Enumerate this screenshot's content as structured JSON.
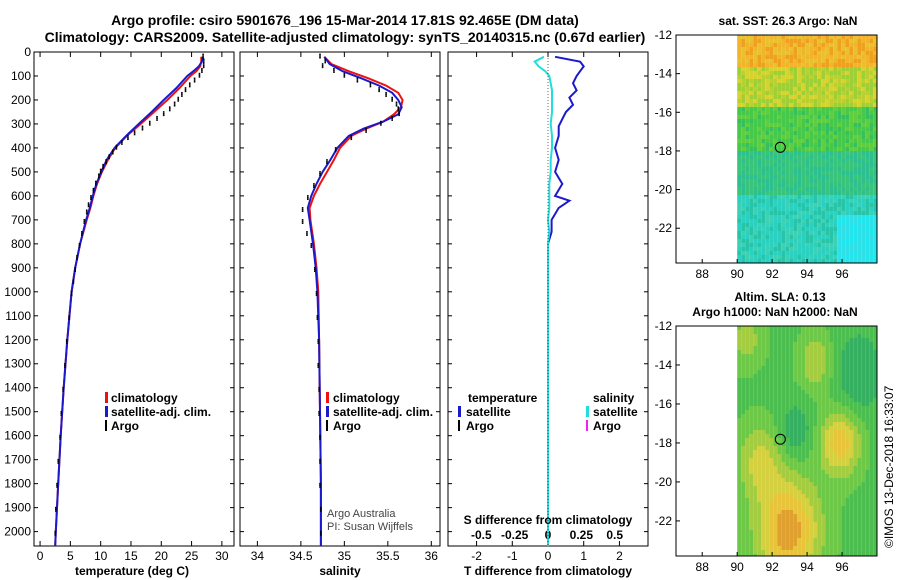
{
  "header": {
    "title_line1": "Argo profile: csiro 5901676_196 15-Mar-2014 17.81S 92.465E (DM data)",
    "title_line2": "Climatology: CARS2009. Satellite-adjusted climatology: synTS_20140315.nc (0.67d earlier)"
  },
  "colors": {
    "climatology": "#ee1111",
    "satellite": "#1a1acc",
    "argo": "#000000",
    "salinity_sat": "#22dddd",
    "salinity_argo": "#ee22ee"
  },
  "chart_data": [
    {
      "id": "temperature",
      "type": "line",
      "xlabel": "temperature (deg C)",
      "ylabel": "",
      "xlim": [
        -1,
        32
      ],
      "ylim": [
        2060,
        0
      ],
      "xticks": [
        0,
        5,
        10,
        15,
        20,
        25,
        30
      ],
      "yticks": [
        0,
        100,
        200,
        300,
        400,
        500,
        600,
        700,
        800,
        900,
        1000,
        1100,
        1200,
        1300,
        1400,
        1500,
        1600,
        1700,
        1800,
        1900,
        2000
      ],
      "legend": [
        "climatology",
        "satellite-adj. clim.",
        "Argo"
      ],
      "series": [
        {
          "name": "climatology",
          "style": "line",
          "depth": [
            20,
            40,
            60,
            80,
            100,
            150,
            200,
            250,
            300,
            350,
            400,
            450,
            500,
            550,
            600,
            650,
            700,
            800,
            900,
            1000,
            1200,
            1400,
            1600,
            1800,
            2000,
            2060
          ],
          "values": [
            26.6,
            26.6,
            26.4,
            25.8,
            24.8,
            23.0,
            21.0,
            18.8,
            16.6,
            14.3,
            12.4,
            11.2,
            10.2,
            9.4,
            8.8,
            8.3,
            7.7,
            6.6,
            5.8,
            5.2,
            4.5,
            3.9,
            3.4,
            3.0,
            2.6,
            2.5
          ]
        },
        {
          "name": "satellite-adj. clim.",
          "style": "line",
          "depth": [
            20,
            40,
            60,
            80,
            100,
            150,
            200,
            250,
            300,
            350,
            400,
            450,
            500,
            550,
            600,
            650,
            700,
            800,
            900,
            1000,
            1200,
            1400,
            1600,
            1800,
            2000,
            2060
          ],
          "values": [
            26.8,
            26.7,
            26.2,
            25.3,
            24.3,
            22.5,
            20.4,
            18.4,
            16.3,
            14.2,
            12.3,
            11.0,
            10.1,
            9.3,
            8.7,
            8.2,
            7.6,
            6.6,
            5.8,
            5.2,
            4.5,
            3.9,
            3.4,
            3.0,
            2.6,
            2.5
          ]
        },
        {
          "name": "Argo",
          "style": "dots",
          "depth": [
            10,
            30,
            50,
            70,
            90,
            110,
            130,
            150,
            170,
            190,
            210,
            230,
            250,
            270,
            290,
            310,
            330,
            350,
            370,
            390,
            410,
            430,
            450,
            470,
            490,
            510,
            540,
            570,
            600,
            630,
            660,
            700,
            750,
            800,
            850,
            900,
            950,
            1000,
            1100,
            1200,
            1300,
            1400,
            1500,
            1600,
            1700,
            1800,
            1900,
            2000
          ],
          "values": [
            26.9,
            27.0,
            27.0,
            26.7,
            26.3,
            25.5,
            24.7,
            24.0,
            23.4,
            22.8,
            22.2,
            21.4,
            20.4,
            19.3,
            18.1,
            16.9,
            15.6,
            14.5,
            13.5,
            12.6,
            12.0,
            11.4,
            10.9,
            10.4,
            10.0,
            9.7,
            9.2,
            8.8,
            8.4,
            8.0,
            7.7,
            7.3,
            6.9,
            6.5,
            6.1,
            5.8,
            5.5,
            5.2,
            4.8,
            4.4,
            4.1,
            3.8,
            3.5,
            3.3,
            3.0,
            2.8,
            2.6,
            2.5
          ]
        }
      ]
    },
    {
      "id": "salinity",
      "type": "line",
      "xlabel": "salinity",
      "xlim": [
        33.8,
        36.1
      ],
      "ylim": [
        2060,
        0
      ],
      "xticks": [
        34,
        34.5,
        35,
        35.5,
        36
      ],
      "xticklabels": [
        "34",
        "34.5",
        "35",
        "35.5",
        "36"
      ],
      "legend": [
        "climatology",
        "satellite-adj. clim.",
        "Argo"
      ],
      "credit_line1": "Argo Australia",
      "credit_line2": "PI: Susan Wijffels",
      "series": [
        {
          "name": "climatology",
          "style": "line",
          "depth": [
            20,
            50,
            80,
            110,
            140,
            170,
            200,
            230,
            260,
            290,
            320,
            350,
            400,
            450,
            500,
            550,
            600,
            650,
            700,
            800,
            900,
            1000,
            1200,
            1500,
            1800,
            2060
          ],
          "values": [
            34.77,
            34.85,
            35.05,
            35.28,
            35.48,
            35.62,
            35.67,
            35.65,
            35.57,
            35.45,
            35.25,
            35.08,
            34.95,
            34.88,
            34.8,
            34.72,
            34.65,
            34.6,
            34.61,
            34.65,
            34.68,
            34.7,
            34.71,
            34.72,
            34.73,
            34.73
          ]
        },
        {
          "name": "satellite-adj. clim.",
          "style": "line",
          "depth": [
            20,
            50,
            80,
            110,
            140,
            170,
            200,
            230,
            260,
            290,
            320,
            350,
            400,
            450,
            500,
            550,
            600,
            650,
            700,
            800,
            900,
            1000,
            1200,
            1500,
            1800,
            2060
          ],
          "values": [
            34.77,
            34.83,
            34.98,
            35.2,
            35.4,
            35.55,
            35.62,
            35.66,
            35.62,
            35.45,
            35.22,
            35.05,
            34.92,
            34.84,
            34.75,
            34.68,
            34.62,
            34.58,
            34.6,
            34.64,
            34.67,
            34.69,
            34.71,
            34.72,
            34.73,
            34.73
          ]
        },
        {
          "name": "Argo",
          "style": "dots",
          "depth": [
            10,
            30,
            50,
            70,
            90,
            110,
            130,
            150,
            170,
            190,
            210,
            230,
            250,
            270,
            290,
            320,
            350,
            400,
            450,
            500,
            550,
            600,
            650,
            700,
            750,
            800,
            900,
            1000,
            1100,
            1200,
            1300,
            1400,
            1500,
            1600,
            1700,
            1800,
            1900,
            2000
          ],
          "values": [
            34.72,
            34.78,
            34.75,
            34.88,
            35.0,
            35.15,
            35.3,
            35.4,
            35.48,
            35.55,
            35.6,
            35.62,
            35.63,
            35.55,
            35.42,
            35.25,
            35.08,
            34.9,
            34.8,
            34.72,
            34.65,
            34.58,
            34.52,
            34.52,
            34.57,
            34.62,
            34.66,
            34.68,
            34.69,
            34.7,
            34.7,
            34.71,
            34.71,
            34.72,
            34.72,
            34.72,
            34.73,
            34.73
          ]
        }
      ]
    },
    {
      "id": "difference",
      "type": "line",
      "xlabel": "T difference from climatology",
      "xlim": [
        -2.8,
        2.8
      ],
      "ylim": [
        2060,
        0
      ],
      "xticks": [
        -2,
        -1,
        0,
        1,
        2
      ],
      "secondary_label": "S difference from climatology",
      "secondary_ticks": [
        -0.5,
        -0.25,
        0,
        0.25,
        0.5
      ],
      "secondary_ticklabels": [
        "-0.5",
        "-0.25",
        "0",
        "0.25",
        "0.5"
      ],
      "legend_temperature": "temperature",
      "legend_salinity": "salinity",
      "legend_satellite": "satellite",
      "legend_argo": "Argo",
      "series": [
        {
          "name": "T satellite",
          "style": "line",
          "depth": [
            20,
            40,
            60,
            80,
            100,
            130,
            160,
            190,
            220,
            250,
            280,
            310,
            350,
            400,
            450,
            500,
            550,
            600,
            620,
            650,
            700,
            750,
            800,
            900,
            1000,
            1200,
            1500,
            1800,
            2060
          ],
          "values": [
            0.2,
            0.9,
            1.0,
            0.9,
            0.8,
            0.7,
            0.8,
            0.6,
            0.7,
            0.5,
            0.4,
            0.3,
            0.3,
            0.2,
            0.3,
            0.2,
            0.4,
            0.2,
            0.6,
            0.3,
            0.1,
            0.1,
            0.0,
            0.0,
            0.0,
            0.0,
            0.0,
            0.0,
            0.0
          ]
        },
        {
          "name": "S satellite",
          "style": "line",
          "depth": [
            20,
            40,
            60,
            80,
            100,
            130,
            160,
            200,
            250,
            300,
            350,
            400,
            450,
            500,
            550,
            600,
            650,
            700,
            750,
            800,
            850,
            900,
            1000,
            1200,
            1500,
            1800,
            2060
          ],
          "values": [
            -0.03,
            -0.1,
            -0.07,
            -0.02,
            0.01,
            0.02,
            0.03,
            0.03,
            0.03,
            0.02,
            0.03,
            0.03,
            0.02,
            0.02,
            0.01,
            0.01,
            0.01,
            0.0,
            0.01,
            0.0,
            0.0,
            0.0,
            0.0,
            0.0,
            0.0,
            0.0,
            0.0
          ]
        }
      ]
    },
    {
      "id": "sst_map",
      "type": "heatmap",
      "title": "sat. SST: 26.3 Argo: NaN",
      "xlim": [
        86.5,
        98.0
      ],
      "ylim": [
        -23.8,
        -12.0
      ],
      "xticks": [
        88,
        90,
        92,
        94,
        96
      ],
      "yticks": [
        -12,
        -14,
        -16,
        -18,
        -20,
        -22
      ],
      "marker_lon": 92.465,
      "marker_lat": -17.81
    },
    {
      "id": "sla_map",
      "type": "heatmap",
      "title_line1": "Altim. SLA: 0.13",
      "title_line2": "Argo h1000: NaN h2000: NaN",
      "xlim": [
        86.5,
        98.0
      ],
      "ylim": [
        -23.8,
        -12.0
      ],
      "xticks": [
        88,
        90,
        92,
        94,
        96
      ],
      "yticks": [
        -12,
        -14,
        -16,
        -18,
        -20,
        -22
      ],
      "marker_lon": 92.465,
      "marker_lat": -17.81
    }
  ],
  "footer": {
    "imos_stamp": "©IMOS 13-Dec-2018 16:33:07"
  }
}
